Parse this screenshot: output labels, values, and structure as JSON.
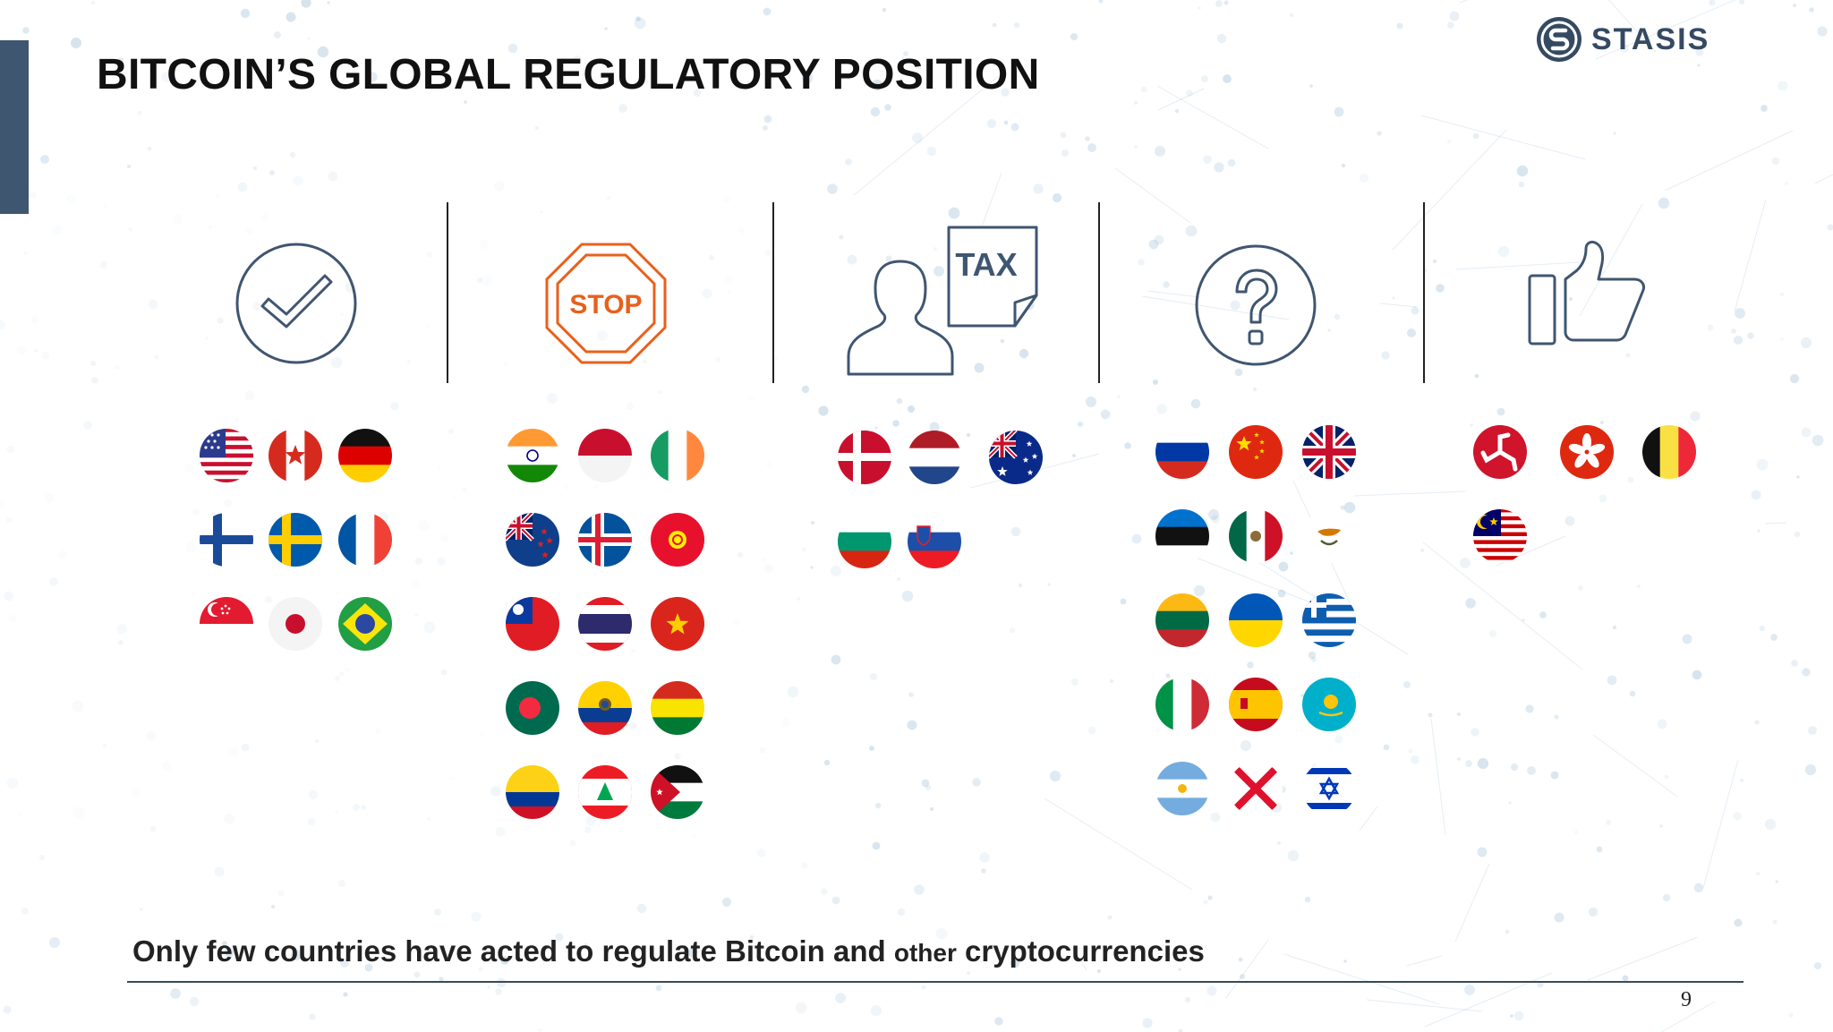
{
  "slide": {
    "title": "BITCOIN’S GLOBAL REGULATORY POSITION",
    "page_number": "9",
    "caption_a": "Only few countries have acted to regulate Bitcoin and ",
    "caption_b": "other",
    "caption_c": " cryptocurrencies"
  },
  "logo": {
    "text": "STASIS"
  },
  "colors": {
    "accent": "#3f5670",
    "stop": "#e8601c",
    "icon": "#3f5670"
  },
  "columns": [
    {
      "icon": "checkmark-circle-icon",
      "flags": [
        "usa",
        "canada",
        "germany",
        "finland",
        "sweden",
        "france",
        "singapore",
        "japan",
        "brazil"
      ]
    },
    {
      "icon": "stop-sign-icon",
      "icon_label": "STOP",
      "flags": [
        "india",
        "indonesia",
        "ireland",
        "new-zealand",
        "iceland",
        "kyrgyzstan",
        "taiwan",
        "thailand",
        "vietnam",
        "bangladesh",
        "ecuador",
        "bolivia",
        "colombia",
        "lebanon",
        "jordan"
      ]
    },
    {
      "icon": "tax-person-icon",
      "icon_label": "TAX",
      "flags": [
        "denmark",
        "netherlands",
        "australia",
        "bulgaria",
        "slovenia"
      ]
    },
    {
      "icon": "question-circle-icon",
      "flags": [
        "russia",
        "china",
        "united-kingdom",
        "estonia",
        "mexico",
        "cyprus",
        "lithuania",
        "ukraine",
        "greece",
        "italy",
        "spain",
        "kazakhstan",
        "argentina",
        "jersey",
        "israel"
      ]
    },
    {
      "icon": "thumbs-up-icon",
      "flags": [
        "isle-of-man",
        "hong-kong",
        "belgium",
        "malaysia"
      ]
    }
  ]
}
